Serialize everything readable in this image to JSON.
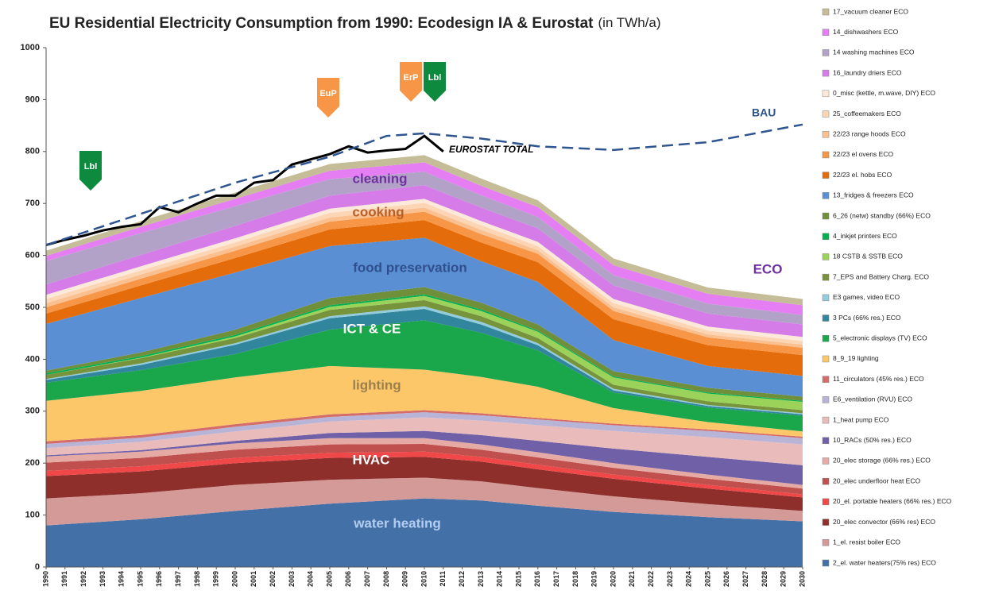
{
  "chart_data": {
    "type": "stacked-area",
    "title": "EU Residential Electricity Consumption from 1990:  Ecodesign IA & Eurostat",
    "subtitle": "(in TWh/a)",
    "x": [
      1990,
      1995,
      2000,
      2005,
      2010,
      2013,
      2016,
      2020,
      2025,
      2030
    ],
    "xlim": [
      1990,
      2030
    ],
    "xticks": [
      1990,
      1991,
      1992,
      1993,
      1994,
      1995,
      1996,
      1997,
      1998,
      1999,
      2000,
      2001,
      2002,
      2003,
      2004,
      2005,
      2006,
      2007,
      2008,
      2009,
      2010,
      2011,
      2012,
      2013,
      2014,
      2015,
      2016,
      2017,
      2018,
      2019,
      2020,
      2021,
      2022,
      2023,
      2024,
      2025,
      2026,
      2027,
      2028,
      2029,
      2030
    ],
    "ylim": [
      0,
      1000
    ],
    "yticks": [
      0,
      100,
      200,
      300,
      400,
      500,
      600,
      700,
      800,
      900,
      1000
    ],
    "grid": false,
    "legend": "right",
    "series": [
      {
        "name": "2_el. water heaters(75% res) ECO",
        "color": "#4470a8",
        "values": [
          80,
          92,
          108,
          122,
          132,
          128,
          118,
          106,
          96,
          88
        ]
      },
      {
        "name": "1_el. resist boiler ECO",
        "color": "#d49a98",
        "values": [
          52,
          50,
          50,
          46,
          40,
          37,
          34,
          30,
          25,
          20
        ]
      },
      {
        "name": "20_elec convector (66% res) ECO",
        "color": "#8e2f2c",
        "values": [
          43,
          42,
          42,
          42,
          40,
          38,
          36,
          34,
          30,
          26
        ]
      },
      {
        "name": "20_el. portable heaters (66% res.) ECO",
        "color": "#f04848",
        "values": [
          10,
          10,
          10,
          10,
          10,
          9,
          9,
          8,
          7,
          6
        ]
      },
      {
        "name": "20_elec underfloor heat ECO",
        "color": "#c0504d",
        "values": [
          16,
          16,
          16,
          16,
          15,
          14,
          14,
          13,
          12,
          11
        ]
      },
      {
        "name": "20_elec storage (66% res.) ECO",
        "color": "#e6aaa5",
        "values": [
          12,
          12,
          12,
          12,
          11,
          10,
          10,
          9,
          8,
          7
        ]
      },
      {
        "name": "10_RACs (50% res.) ECO",
        "color": "#7060a8",
        "values": [
          2,
          3,
          5,
          10,
          14,
          18,
          22,
          28,
          34,
          38
        ]
      },
      {
        "name": "1_heat pump  ECO",
        "color": "#e9bcbb",
        "values": [
          14,
          16,
          18,
          22,
          26,
          28,
          30,
          34,
          38,
          40
        ]
      },
      {
        "name": "E6_ventilation (RVU) ECO",
        "color": "#b8b4d8",
        "values": [
          8,
          8,
          9,
          9,
          10,
          10,
          11,
          11,
          12,
          12
        ]
      },
      {
        "name": "11_circulators (45% res.) ECO",
        "color": "#d46d6a",
        "values": [
          5,
          5,
          5,
          5,
          4,
          4,
          3,
          3,
          3,
          3
        ]
      },
      {
        "name": "8_9_19 lighting",
        "color": "#fbc768",
        "values": [
          78,
          85,
          90,
          93,
          78,
          70,
          60,
          30,
          14,
          10
        ]
      },
      {
        "name": "5_electronic displays (TV) ECO",
        "color": "#1aa64a",
        "values": [
          35,
          40,
          45,
          70,
          95,
          85,
          70,
          30,
          28,
          30
        ]
      },
      {
        "name": "3 PCs (66% res.) ECO",
        "color": "#31859c",
        "values": [
          5,
          10,
          18,
          22,
          22,
          16,
          10,
          4,
          3,
          3
        ]
      },
      {
        "name": "E3 games, video ECO",
        "color": "#93cddd",
        "values": [
          2,
          3,
          3,
          4,
          5,
          5,
          4,
          3,
          2,
          2
        ]
      },
      {
        "name": "7_EPS and Battery Charg. ECO",
        "color": "#77933c",
        "values": [
          8,
          10,
          10,
          12,
          12,
          11,
          10,
          8,
          7,
          6
        ]
      },
      {
        "name": "18 CSTB & SSTB ECO",
        "color": "#9bd35a",
        "values": [
          0,
          1,
          3,
          6,
          8,
          10,
          12,
          14,
          15,
          16
        ]
      },
      {
        "name": "4_inkjet printers  ECO",
        "color": "#00b050",
        "values": [
          3,
          3,
          3,
          3,
          3,
          3,
          2,
          2,
          2,
          2
        ]
      },
      {
        "name": "6_26 (netw) standby (66%) ECO",
        "color": "#6f8f3a",
        "values": [
          5,
          7,
          10,
          14,
          14,
          13,
          12,
          10,
          9,
          8
        ]
      },
      {
        "name": "13_fridges & freezers ECO",
        "color": "#5b8fd3",
        "values": [
          90,
          105,
          110,
          100,
          95,
          80,
          82,
          60,
          42,
          40
        ]
      },
      {
        "name": "22/23 el. hobs ECO",
        "color": "#e46c0a",
        "values": [
          20,
          24,
          28,
          32,
          34,
          36,
          38,
          40,
          40,
          40
        ]
      },
      {
        "name": "22/23 el ovens ECO",
        "color": "#f79646",
        "values": [
          12,
          13,
          14,
          15,
          16,
          16,
          16,
          16,
          15,
          14
        ]
      },
      {
        "name": "22/23 range hoods ECO",
        "color": "#fac08f",
        "values": [
          8,
          8,
          8,
          8,
          8,
          8,
          7,
          7,
          6,
          6
        ]
      },
      {
        "name": "25_coffeemakers ECO",
        "color": "#fcd5b5",
        "values": [
          8,
          8,
          8,
          9,
          9,
          9,
          8,
          8,
          7,
          7
        ]
      },
      {
        "name": "0_misc (kettle, m.wave, DIY) ECO",
        "color": "#fde9d9",
        "values": [
          8,
          8,
          8,
          8,
          8,
          8,
          8,
          8,
          8,
          8
        ]
      },
      {
        "name": "16_laundry driers ECO",
        "color": "#d67ce9",
        "values": [
          20,
          22,
          24,
          25,
          26,
          26,
          26,
          26,
          25,
          24
        ]
      },
      {
        "name": "14 washing machines ECO",
        "color": "#b3a2c7",
        "values": [
          45,
          42,
          38,
          32,
          26,
          24,
          22,
          20,
          19,
          18
        ]
      },
      {
        "name": "14_dishwashers ECO",
        "color": "#e47ef2",
        "values": [
          10,
          12,
          14,
          16,
          18,
          18,
          19,
          19,
          19,
          19
        ]
      },
      {
        "name": "17_vacuum cleaner ECO",
        "color": "#c4bd97",
        "values": [
          10,
          11,
          12,
          13,
          14,
          14,
          13,
          13,
          12,
          12
        ]
      }
    ],
    "overlays": [
      {
        "type": "line",
        "name": "EUROSTAT TOTAL",
        "color": "#000000",
        "dashed": false,
        "x": [
          1990,
          1991,
          1992,
          1993,
          1994,
          1995,
          1996,
          1997,
          1998,
          1999,
          2000,
          2001,
          2002,
          2003,
          2004,
          2005,
          2006,
          2007,
          2008,
          2009,
          2010,
          2011
        ],
        "values": [
          620,
          630,
          638,
          648,
          655,
          660,
          693,
          683,
          700,
          715,
          715,
          740,
          745,
          775,
          785,
          795,
          810,
          798,
          802,
          805,
          830,
          800
        ]
      },
      {
        "type": "line",
        "name": "BAU",
        "color": "#2e5590",
        "dashed": true,
        "x": [
          1990,
          1995,
          2000,
          2005,
          2008,
          2010,
          2013,
          2016,
          2020,
          2025,
          2030
        ],
        "values": [
          620,
          680,
          740,
          790,
          830,
          835,
          825,
          810,
          803,
          818,
          852
        ]
      }
    ],
    "annotations": [
      "cleaning",
      "cooking",
      "food preservation",
      "ICT & CE",
      "lighting",
      "HVAC",
      "water heating",
      "ECO"
    ],
    "markers": [
      {
        "label": "Lbl",
        "color": "#0e8a3e"
      },
      {
        "label": "EuP",
        "color": "#f79646"
      },
      {
        "label": "ErP",
        "color": "#f79646"
      },
      {
        "label": "Lbl",
        "color": "#0e8a3e"
      }
    ]
  }
}
